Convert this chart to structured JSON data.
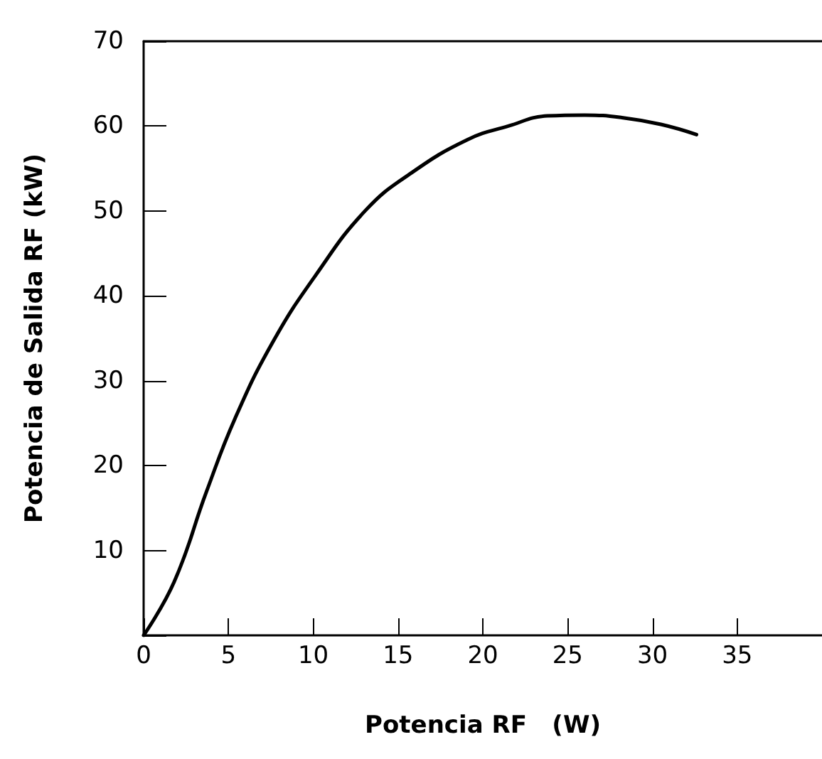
{
  "chart_data": {
    "type": "line",
    "xlabel": "Potencia RF   (W)",
    "ylabel": "Potencia de Salida RF (kW)",
    "series": [
      {
        "color": "#000000",
        "x": [
          0,
          1.8,
          3.7,
          5.4,
          7.6,
          10.1,
          13.1,
          15.8,
          19.1,
          21.5,
          23.8,
          26,
          28.2,
          30.5,
          32.6
        ],
        "values": [
          0,
          6.3,
          16.9,
          25.6,
          34.5,
          42.3,
          50.1,
          54.5,
          58.4,
          60,
          61.2,
          61.3,
          61,
          60.2,
          59
        ]
      }
    ],
    "xlim": [
      0,
      40
    ],
    "xticks": [
      0,
      5,
      10,
      15,
      20,
      25,
      30,
      35
    ],
    "ylim": [
      0,
      70
    ],
    "yticks": [
      {
        "value": 0,
        "label": null
      },
      10,
      20,
      30,
      40,
      50,
      60,
      70
    ],
    "marker": "none",
    "line_style": "solid"
  }
}
